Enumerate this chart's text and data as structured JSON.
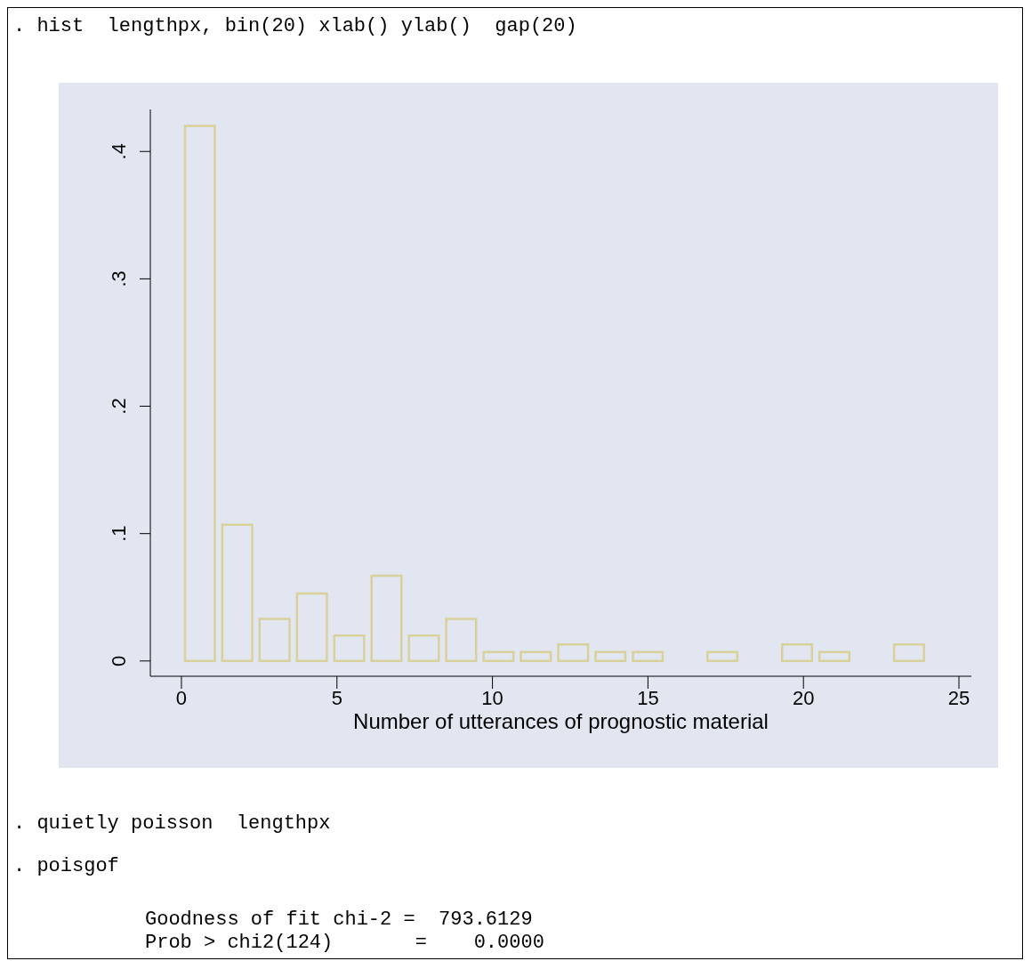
{
  "chart_data": {
    "type": "histogram",
    "xlabel": "Number of utterances of prognostic material",
    "bins": [
      0,
      1.2,
      2.4,
      3.6,
      4.8,
      6,
      7.2,
      8.4,
      9.6,
      10.8,
      12,
      13.2,
      14.4,
      15.6,
      16.8,
      18,
      19.2,
      20.4,
      21.6,
      22.8,
      24
    ],
    "values": [
      0.42,
      0.107,
      0.033,
      0.053,
      0.02,
      0.067,
      0.02,
      0.033,
      0.007,
      0.007,
      0.013,
      0.007,
      0.007,
      0,
      0.007,
      0,
      0.013,
      0.007,
      0,
      0.013
    ],
    "color": "#d9d19b",
    "xlim": [
      -1,
      25.4
    ],
    "ylim": [
      -0.012,
      0.433
    ],
    "xticks": [
      0,
      5,
      10,
      15,
      20,
      25
    ],
    "yticks": [
      0,
      {
        "value": 0.1,
        "label": ".1"
      },
      {
        "value": 0.2,
        "label": ".2"
      },
      {
        "value": 0.3,
        "label": ".3"
      },
      {
        "value": 0.4,
        "label": ".4"
      }
    ],
    "annotations": [
      ". hist  lengthpx, bin(20) xlab() ylab()  gap(20)",
      ". quietly poisson  lengthpx",
      ". poisgof",
      "Goodness of fit chi-2 =  793.6129",
      "Prob > chi2(124)       =    0.0000"
    ]
  }
}
